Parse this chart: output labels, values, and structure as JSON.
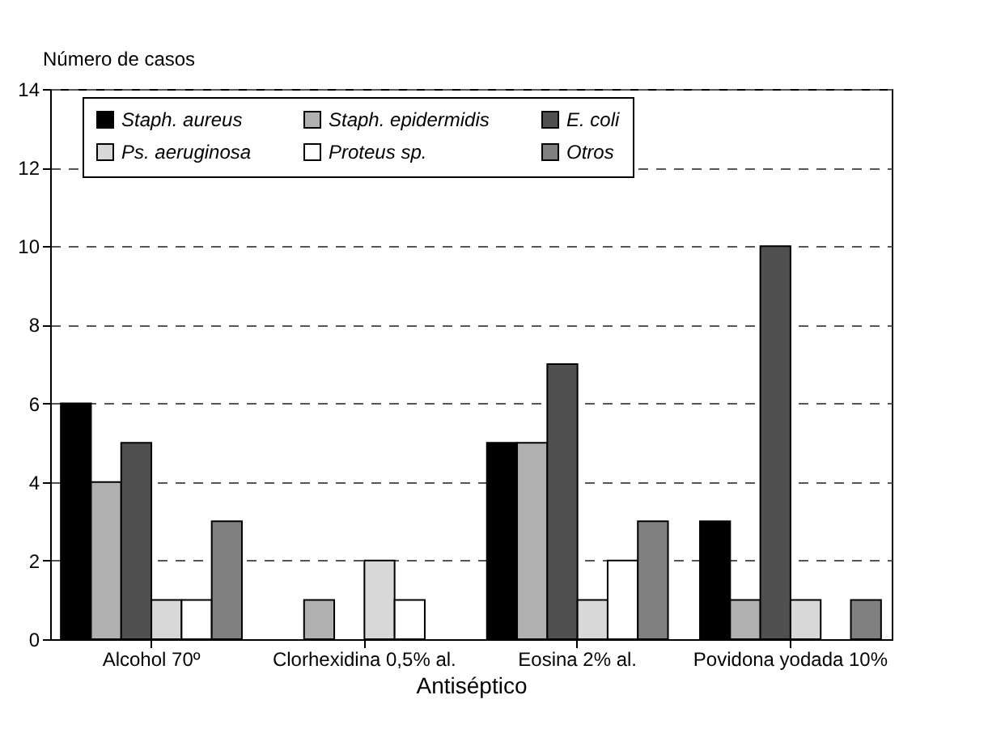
{
  "chart_data": {
    "type": "bar",
    "xlabel": "Antiséptico",
    "ylabel": "Número de casos",
    "categories": [
      "Alcohol 70º",
      "Clorhexidina 0,5% al.",
      "Eosina 2% al.",
      "Povidona yodada 10%"
    ],
    "series": [
      {
        "name": "Staph. aureus",
        "color": "#000000",
        "values": [
          6,
          null,
          5,
          3
        ]
      },
      {
        "name": "Staph. epidermidis",
        "color": "#b0b0b0",
        "values": [
          4,
          1,
          5,
          1
        ]
      },
      {
        "name": "E. coli",
        "color": "#505050",
        "values": [
          5,
          null,
          7,
          10
        ]
      },
      {
        "name": "Ps. aeruginosa",
        "color": "#d8d8d8",
        "values": [
          1,
          2,
          1,
          1
        ]
      },
      {
        "name": "Proteus sp.",
        "color": "#ffffff",
        "values": [
          1,
          1,
          2,
          null
        ]
      },
      {
        "name": "Otros",
        "color": "#808080",
        "values": [
          3,
          null,
          3,
          1
        ]
      }
    ],
    "ylim": [
      0,
      14
    ],
    "yticks": [
      0,
      2,
      4,
      6,
      8,
      10,
      12,
      14
    ],
    "grid": "y",
    "legend": "top"
  }
}
